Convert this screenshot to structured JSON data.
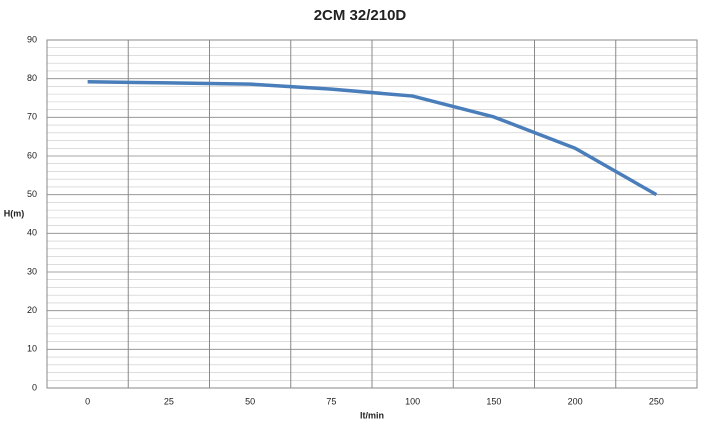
{
  "chart_data": {
    "type": "line",
    "title": "2CM 32/210D",
    "x_label": "lt/min",
    "y_label": "H(m)",
    "categories": [
      "0",
      "25",
      "50",
      "75",
      "100",
      "150",
      "200",
      "250"
    ],
    "series": [
      {
        "name": "2CM 32/210D",
        "color": "#4a7ebb",
        "values": [
          79.2,
          78.9,
          78.6,
          77.3,
          75.5,
          70.1,
          62,
          50
        ]
      }
    ],
    "ylim": [
      0,
      90
    ],
    "yticks": [
      0,
      10,
      20,
      30,
      40,
      50,
      60,
      70,
      80,
      90
    ],
    "grid": true
  }
}
